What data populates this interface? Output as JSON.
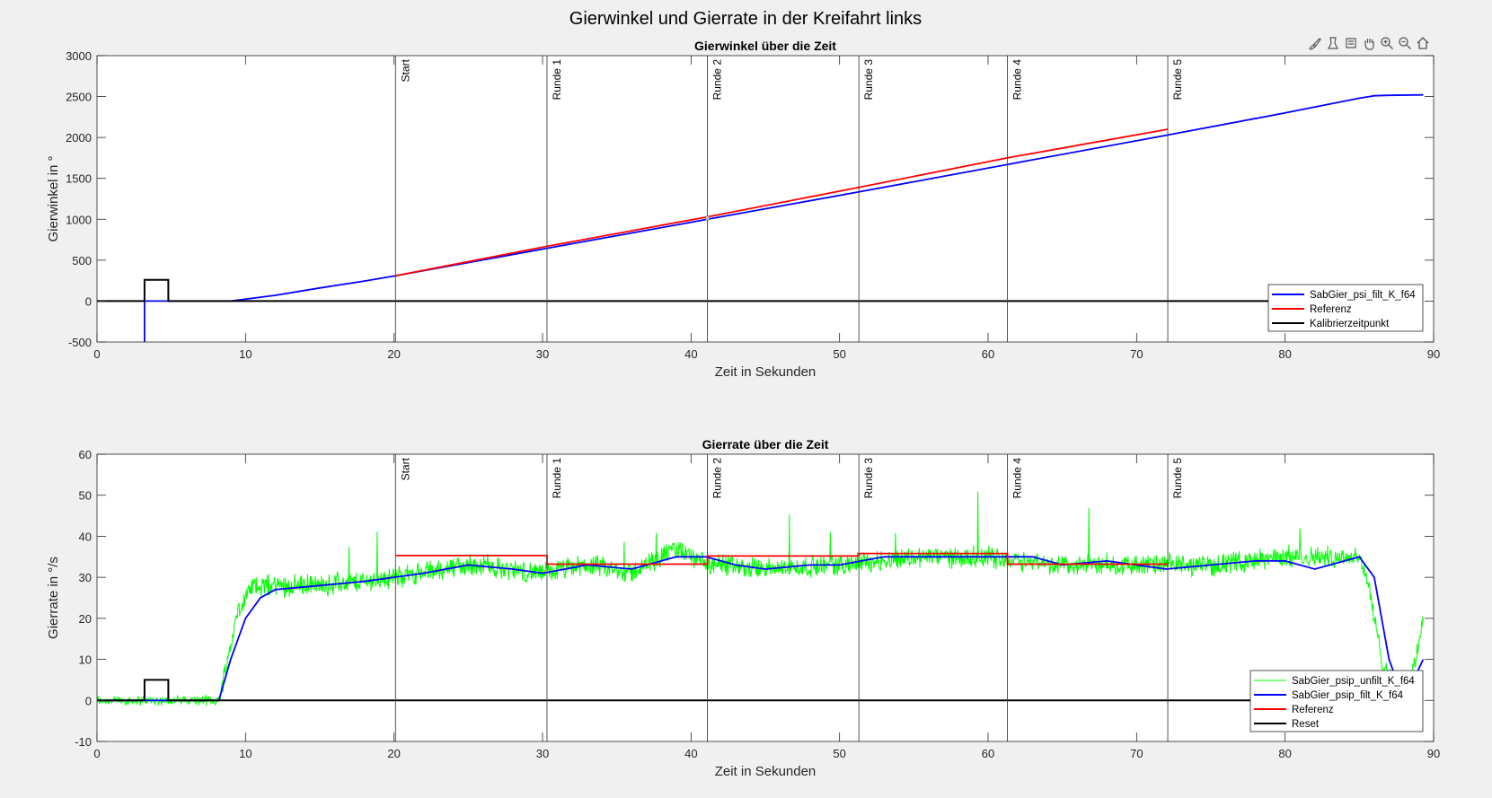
{
  "figure_title": "Gierwinkel und Gierrate in der Kreifahrt links",
  "toolbar": {
    "icons": [
      "brush-icon",
      "data-tips-icon",
      "datacursor-icon",
      "pan-icon",
      "zoom-in-icon",
      "zoom-out-icon",
      "home-icon"
    ]
  },
  "chart_data": [
    {
      "type": "line",
      "title": "Gierwinkel über die Zeit",
      "xlabel": "Zeit in Sekunden",
      "ylabel": "Gierwinkel in °",
      "xlim": [
        0,
        90
      ],
      "ylim": [
        -500,
        3000
      ],
      "xticks": [
        0,
        10,
        20,
        30,
        40,
        50,
        60,
        70,
        80,
        90
      ],
      "yticks": [
        -500,
        0,
        500,
        1000,
        1500,
        2000,
        2500,
        3000
      ],
      "legend_position": "bottom-right",
      "markers": [
        {
          "x": 20.1,
          "label": "Start"
        },
        {
          "x": 30.3,
          "label": "Runde 1"
        },
        {
          "x": 41.1,
          "label": "Runde 2"
        },
        {
          "x": 51.3,
          "label": "Runde 3"
        },
        {
          "x": 61.3,
          "label": "Runde 4"
        },
        {
          "x": 72.1,
          "label": "Runde 5"
        }
      ],
      "series": [
        {
          "name": "SabGier_psi_filt_K_f64",
          "color": "#0000ff",
          "x": [
            3.2,
            3.2,
            4.8,
            9.0,
            12,
            15,
            18,
            20.1,
            30.3,
            41.1,
            51.3,
            61.3,
            72.1,
            80,
            85,
            86,
            87,
            89.3
          ],
          "y": [
            -500,
            0,
            0,
            0,
            70,
            160,
            245,
            310,
            645,
            1000,
            1335,
            1670,
            2030,
            2300,
            2480,
            2510,
            2515,
            2520
          ]
        },
        {
          "name": "Referenz",
          "color": "#ff0000",
          "x": [
            20.1,
            30.3,
            41.1,
            51.3,
            61.3,
            72.1
          ],
          "y": [
            310,
            670,
            1030,
            1390,
            1750,
            2100
          ]
        },
        {
          "name": "Kalibrierzeitpunkt",
          "color": "#000000",
          "x": [
            0,
            3.2,
            3.2,
            4.8,
            4.8,
            89.3
          ],
          "y": [
            0,
            0,
            260,
            260,
            0,
            0
          ]
        }
      ]
    },
    {
      "type": "line",
      "title": "Gierrate über die Zeit",
      "xlabel": "Zeit in Sekunden",
      "ylabel": "Gierrate in °/s",
      "xlim": [
        0,
        90
      ],
      "ylim": [
        -10,
        60
      ],
      "xticks": [
        0,
        10,
        20,
        30,
        40,
        50,
        60,
        70,
        80,
        90
      ],
      "yticks": [
        -10,
        0,
        10,
        20,
        30,
        40,
        50,
        60
      ],
      "legend_position": "bottom-right",
      "markers": [
        {
          "x": 20.1,
          "label": "Start"
        },
        {
          "x": 30.3,
          "label": "Runde 1"
        },
        {
          "x": 41.1,
          "label": "Runde 2"
        },
        {
          "x": 51.3,
          "label": "Runde 3"
        },
        {
          "x": 61.3,
          "label": "Runde 4"
        },
        {
          "x": 72.1,
          "label": "Runde 5"
        }
      ],
      "series": [
        {
          "name": "SabGier_psip_unfilt_K_f64",
          "color": "#00ff00",
          "noise": 2.2,
          "x": [
            0,
            3.2,
            8.2,
            9.5,
            10.5,
            12,
            15,
            18,
            20,
            25,
            30,
            33,
            36,
            39,
            41,
            45,
            50,
            55,
            60,
            65,
            70,
            75,
            80,
            85,
            85.5,
            86.5,
            88,
            88.5,
            89.3
          ],
          "y": [
            0,
            0,
            0,
            22,
            28,
            28,
            28,
            29,
            30,
            33,
            31,
            33,
            31,
            37,
            33,
            32,
            33,
            35,
            35,
            33,
            33,
            33,
            35,
            35,
            30,
            10,
            0,
            5,
            20
          ]
        },
        {
          "name": "SabGier_psip_filt_K_f64",
          "color": "#0000ff",
          "x": [
            0,
            3.2,
            8.2,
            9,
            10,
            11,
            12,
            15,
            18,
            20,
            22,
            25,
            28,
            30,
            33,
            36,
            39,
            41,
            43,
            45,
            48,
            50,
            53,
            55,
            58,
            60,
            63,
            65,
            68,
            70,
            72,
            75,
            78,
            80,
            82,
            84,
            85,
            86,
            87,
            88,
            89.3
          ],
          "y": [
            0,
            0,
            0,
            10,
            20,
            25,
            27,
            28,
            29,
            30,
            31,
            33,
            32,
            31,
            33,
            32,
            35,
            35,
            33,
            32,
            33,
            33,
            35,
            35,
            35,
            35,
            35,
            33,
            34,
            33,
            32,
            33,
            34,
            34,
            32,
            34,
            35,
            30,
            10,
            0,
            10
          ]
        },
        {
          "name": "Referenz",
          "color": "#ff0000",
          "x": [
            20.1,
            30.3,
            30.3,
            41.1,
            41.1,
            51.3,
            51.3,
            61.3,
            61.3,
            72.1
          ],
          "y": [
            35.3,
            35.3,
            33.2,
            33.2,
            35.2,
            35.2,
            35.8,
            35.8,
            33.2,
            33.2
          ]
        },
        {
          "name": "Reset",
          "color": "#000000",
          "x": [
            0,
            3.2,
            3.2,
            4.8,
            4.8,
            89.3
          ],
          "y": [
            0,
            0,
            5,
            5,
            0,
            0
          ]
        }
      ]
    }
  ]
}
